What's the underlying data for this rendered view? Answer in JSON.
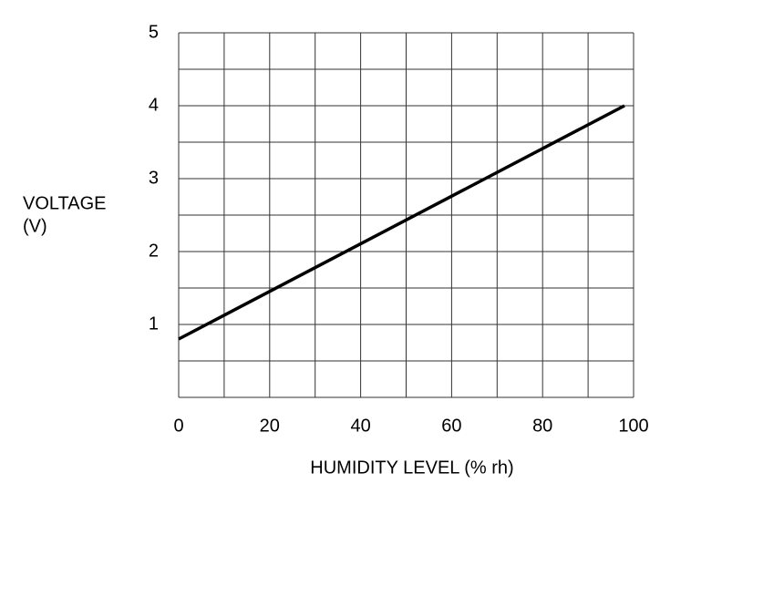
{
  "chart_data": {
    "type": "line",
    "ylabel": [
      "VOLTAGE",
      "(V)"
    ],
    "xlabel": "HUMIDITY LEVEL (% rh)",
    "x": [
      0,
      98
    ],
    "values": [
      0.8,
      4.0
    ],
    "color": "#000000",
    "xlim": [
      0,
      100
    ],
    "ylim": [
      0,
      5
    ],
    "xticks": [
      0,
      20,
      40,
      60,
      80,
      100
    ],
    "yticks": [
      1,
      2,
      3,
      4,
      5
    ],
    "xgrid": [
      0,
      10,
      20,
      30,
      40,
      50,
      60,
      70,
      80,
      90,
      100
    ],
    "ygrid": [
      0,
      0.5,
      1,
      1.5,
      2,
      2.5,
      3,
      3.5,
      4,
      4.5,
      5
    ],
    "grid": true
  }
}
